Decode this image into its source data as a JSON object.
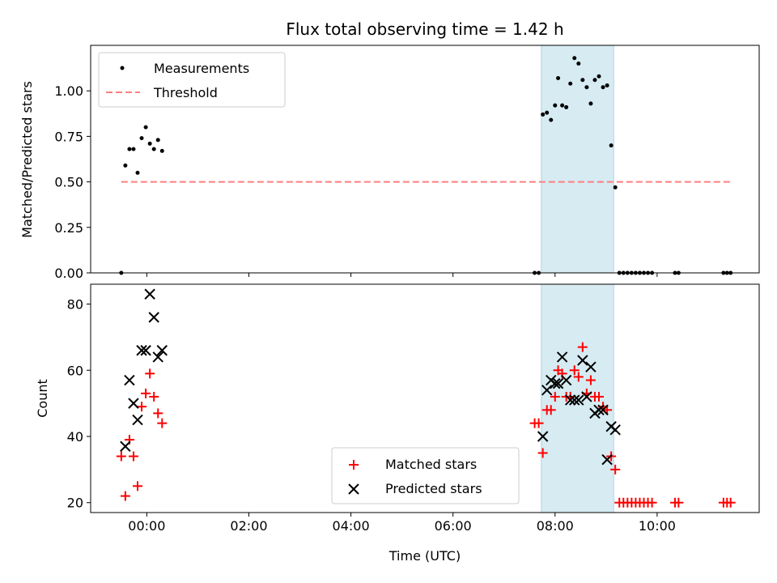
{
  "chart_data": {
    "title": "Flux total observing time = 1.42 h",
    "xlabel": "Time (UTC)",
    "x_unit": "hours UTC (negative = before 00:00 on the same day)",
    "xlim": [
      -1.1,
      12.0
    ],
    "xticks": [
      {
        "value": 0,
        "label": "00:00"
      },
      {
        "value": 2,
        "label": "02:00"
      },
      {
        "value": 4,
        "label": "04:00"
      },
      {
        "value": 6,
        "label": "06:00"
      },
      {
        "value": 8,
        "label": "08:00"
      },
      {
        "value": 10,
        "label": "10:00"
      }
    ],
    "highlight_span": {
      "x": [
        7.73,
        9.15
      ],
      "color": "#add8e6"
    },
    "panels": [
      {
        "type": "scatter",
        "ylabel": "Matched/Predicted stars",
        "ylim": [
          0.0,
          1.25
        ],
        "yticks": [
          "0.00",
          "0.25",
          "0.50",
          "0.75",
          "1.00"
        ],
        "ytick_values": [
          0.0,
          0.25,
          0.5,
          0.75,
          1.0
        ],
        "legend": {
          "placement": "top-left"
        },
        "series": [
          {
            "name": "Measurements",
            "marker": "dot",
            "color": "#000000",
            "points": [
              [
                -0.5,
                0.0
              ],
              [
                -0.42,
                0.59
              ],
              [
                -0.34,
                0.68
              ],
              [
                -0.26,
                0.68
              ],
              [
                -0.18,
                0.55
              ],
              [
                -0.1,
                0.74
              ],
              [
                -0.02,
                0.8
              ],
              [
                0.06,
                0.71
              ],
              [
                0.14,
                0.68
              ],
              [
                0.22,
                0.73
              ],
              [
                0.3,
                0.67
              ],
              [
                7.6,
                0.0
              ],
              [
                7.68,
                0.0
              ],
              [
                7.76,
                0.87
              ],
              [
                7.84,
                0.88
              ],
              [
                7.92,
                0.84
              ],
              [
                8.0,
                0.92
              ],
              [
                8.06,
                1.07
              ],
              [
                8.14,
                0.92
              ],
              [
                8.22,
                0.91
              ],
              [
                8.3,
                1.04
              ],
              [
                8.38,
                1.18
              ],
              [
                8.46,
                1.15
              ],
              [
                8.54,
                1.06
              ],
              [
                8.62,
                1.02
              ],
              [
                8.7,
                0.93
              ],
              [
                8.78,
                1.06
              ],
              [
                8.86,
                1.08
              ],
              [
                8.94,
                1.02
              ],
              [
                9.02,
                1.03
              ],
              [
                9.1,
                0.7
              ],
              [
                9.18,
                0.47
              ],
              [
                9.26,
                0.0
              ],
              [
                9.34,
                0.0
              ],
              [
                9.42,
                0.0
              ],
              [
                9.5,
                0.0
              ],
              [
                9.58,
                0.0
              ],
              [
                9.66,
                0.0
              ],
              [
                9.74,
                0.0
              ],
              [
                9.82,
                0.0
              ],
              [
                9.9,
                0.0
              ],
              [
                10.35,
                0.0
              ],
              [
                10.42,
                0.0
              ],
              [
                11.3,
                0.0
              ],
              [
                11.37,
                0.0
              ],
              [
                11.44,
                0.0
              ]
            ]
          },
          {
            "name": "Threshold",
            "type": "line",
            "style": "dashed",
            "color": "#ff7f7f",
            "points": [
              [
                -0.5,
                0.5
              ],
              [
                11.44,
                0.5
              ]
            ]
          }
        ]
      },
      {
        "type": "scatter",
        "ylabel": "Count",
        "ylim": [
          17,
          86
        ],
        "yticks": [
          "20",
          "40",
          "60",
          "80"
        ],
        "ytick_values": [
          20,
          40,
          60,
          80
        ],
        "legend": {
          "placement": "lower-center"
        },
        "series": [
          {
            "name": "Matched stars",
            "marker": "plus",
            "color": "#ff0000",
            "points": [
              [
                -0.5,
                34
              ],
              [
                -0.42,
                22
              ],
              [
                -0.34,
                39
              ],
              [
                -0.26,
                34
              ],
              [
                -0.18,
                25
              ],
              [
                -0.1,
                49
              ],
              [
                -0.02,
                53
              ],
              [
                0.06,
                59
              ],
              [
                0.14,
                52
              ],
              [
                0.22,
                47
              ],
              [
                0.3,
                44
              ],
              [
                7.6,
                44
              ],
              [
                7.68,
                44
              ],
              [
                7.76,
                35
              ],
              [
                7.84,
                48
              ],
              [
                7.92,
                48
              ],
              [
                8.0,
                52
              ],
              [
                8.06,
                60
              ],
              [
                8.14,
                59
              ],
              [
                8.22,
                52
              ],
              [
                8.3,
                52
              ],
              [
                8.38,
                60
              ],
              [
                8.46,
                58
              ],
              [
                8.54,
                67
              ],
              [
                8.62,
                53
              ],
              [
                8.7,
                57
              ],
              [
                8.78,
                52
              ],
              [
                8.86,
                52
              ],
              [
                8.94,
                49
              ],
              [
                9.02,
                48
              ],
              [
                9.1,
                34
              ],
              [
                9.18,
                30
              ],
              [
                9.26,
                20
              ],
              [
                9.34,
                20
              ],
              [
                9.42,
                20
              ],
              [
                9.5,
                20
              ],
              [
                9.58,
                20
              ],
              [
                9.66,
                20
              ],
              [
                9.74,
                20
              ],
              [
                9.82,
                20
              ],
              [
                9.9,
                20
              ],
              [
                10.35,
                20
              ],
              [
                10.42,
                20
              ],
              [
                11.3,
                20
              ],
              [
                11.37,
                20
              ],
              [
                11.44,
                20
              ]
            ]
          },
          {
            "name": "Predicted stars",
            "marker": "x",
            "color": "#000000",
            "points": [
              [
                -0.42,
                37
              ],
              [
                -0.34,
                57
              ],
              [
                -0.26,
                50
              ],
              [
                -0.18,
                45
              ],
              [
                -0.1,
                66
              ],
              [
                -0.02,
                66
              ],
              [
                0.06,
                83
              ],
              [
                0.14,
                76
              ],
              [
                0.22,
                64
              ],
              [
                0.3,
                66
              ],
              [
                7.76,
                40
              ],
              [
                7.84,
                54
              ],
              [
                7.92,
                57
              ],
              [
                8.0,
                56
              ],
              [
                8.06,
                56
              ],
              [
                8.14,
                64
              ],
              [
                8.22,
                57
              ],
              [
                8.3,
                51
              ],
              [
                8.38,
                51
              ],
              [
                8.46,
                51
              ],
              [
                8.54,
                63
              ],
              [
                8.62,
                52
              ],
              [
                8.7,
                61
              ],
              [
                8.78,
                47
              ],
              [
                8.86,
                48
              ],
              [
                8.94,
                48
              ],
              [
                9.02,
                33
              ],
              [
                9.1,
                43
              ],
              [
                9.18,
                42
              ]
            ]
          }
        ]
      }
    ]
  }
}
